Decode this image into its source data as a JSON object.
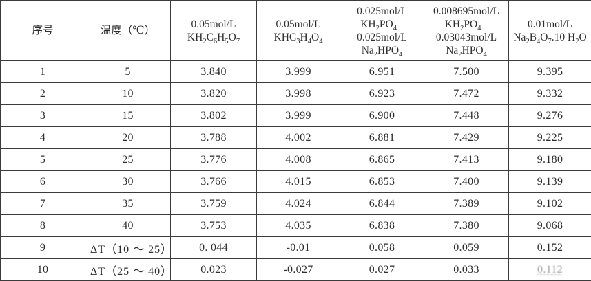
{
  "chart_data": {
    "type": "table",
    "columns": [
      {
        "id": "index",
        "header_lines": [
          "序号"
        ]
      },
      {
        "id": "temperature",
        "header_lines": [
          "温度（℃）"
        ]
      },
      {
        "id": "kh2c6h5o7",
        "header_lines": [
          "0.05mol/L",
          "KH_2C_6H_5O_7"
        ]
      },
      {
        "id": "khc3h4o4",
        "header_lines": [
          "0.05mol/L",
          "KHC_3H_4O_4"
        ]
      },
      {
        "id": "kh2po4-na2hpo4-equimolar",
        "header_lines": [
          "0.025mol/L",
          "KH_2PO_4 ^-",
          "0.025mol/L",
          "Na_2HPO_4"
        ]
      },
      {
        "id": "kh2po4-na2hpo4-mixed",
        "header_lines": [
          "0.008695mol/L",
          "KH_2PO_4 ^-",
          "0.03043mol/L",
          "Na_2HPO_4"
        ]
      },
      {
        "id": "na2b4o7-10h2o",
        "header_lines": [
          "0.01mol/L",
          "Na_2B_4O_7.10 H_2O"
        ]
      }
    ],
    "rows": [
      [
        "1",
        "5",
        "3.840",
        "3.999",
        "6.951",
        "7.500",
        "9.395"
      ],
      [
        "2",
        "10",
        "3.820",
        "3.998",
        "6.923",
        "7.472",
        "9.332"
      ],
      [
        "3",
        "15",
        "3.802",
        "3.999",
        "6.900",
        "7.448",
        "9.276"
      ],
      [
        "4",
        "20",
        "3.788",
        "4.002",
        "6.881",
        "7.429",
        "9.225"
      ],
      [
        "5",
        "25",
        "3.776",
        "4.008",
        "6.865",
        "7.413",
        "9.180"
      ],
      [
        "6",
        "30",
        "3.766",
        "4.015",
        "6.853",
        "7.400",
        "9.139"
      ],
      [
        "7",
        "35",
        "3.759",
        "4.024",
        "6.844",
        "7.389",
        "9.102"
      ],
      [
        "8",
        "40",
        "3.753",
        "4.035",
        "6.838",
        "7.380",
        "9.068"
      ],
      [
        "9",
        "ΔT（10 ～ 25）",
        "0. 044",
        "-0.01",
        "0.058",
        "0.059",
        "0.152"
      ],
      [
        "10",
        "ΔT（25 ～ 40）",
        "0.023",
        "-0.027",
        "0.027",
        "0.033",
        "0.112"
      ]
    ],
    "left_aligned_cells": [
      [
        8,
        1
      ],
      [
        9,
        1
      ]
    ],
    "faded_cells": [
      [
        9,
        6
      ]
    ]
  },
  "colors": {
    "border": "#3b3b3b",
    "text": "#2e2e2e",
    "background": "#ffffff",
    "faded_text": "#9a9a9a"
  }
}
